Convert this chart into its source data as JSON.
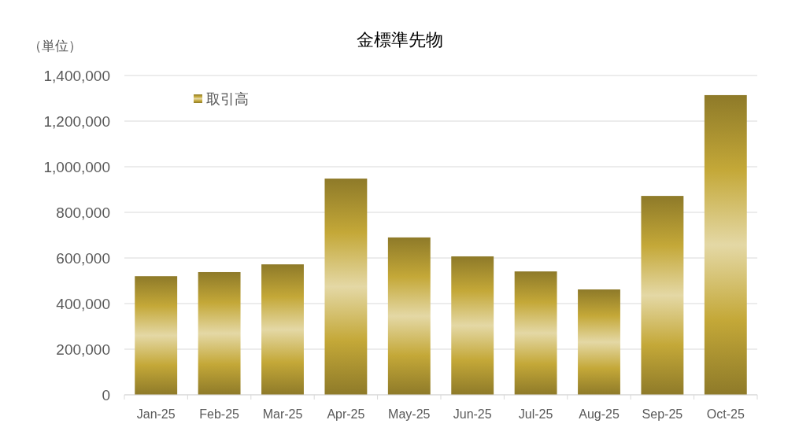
{
  "chart_data": {
    "type": "bar",
    "title": "金標準先物",
    "ylabel": "（単位）",
    "categories": [
      "Jan-25",
      "Feb-25",
      "Mar-25",
      "Apr-25",
      "May-25",
      "Jun-25",
      "Jul-25",
      "Aug-25",
      "Sep-25",
      "Oct-25"
    ],
    "series": [
      {
        "name": "取引高",
        "color": "#c4a838",
        "values": [
          520000,
          538000,
          572000,
          948000,
          690000,
          607000,
          541000,
          462000,
          872000,
          1314000
        ]
      }
    ],
    "ylim": [
      0,
      1400000
    ],
    "yticks": [
      {
        "value": 0,
        "label": "0"
      },
      {
        "value": 200000,
        "label": "200,000"
      },
      {
        "value": 400000,
        "label": "400,000"
      },
      {
        "value": 600000,
        "label": "600,000"
      },
      {
        "value": 800000,
        "label": "800,000"
      },
      {
        "value": 1000000,
        "label": "1,000,000"
      },
      {
        "value": 1200000,
        "label": "1,200,000"
      },
      {
        "value": 1400000,
        "label": "1,400,000"
      }
    ],
    "grid": "y",
    "legend": "top left"
  }
}
